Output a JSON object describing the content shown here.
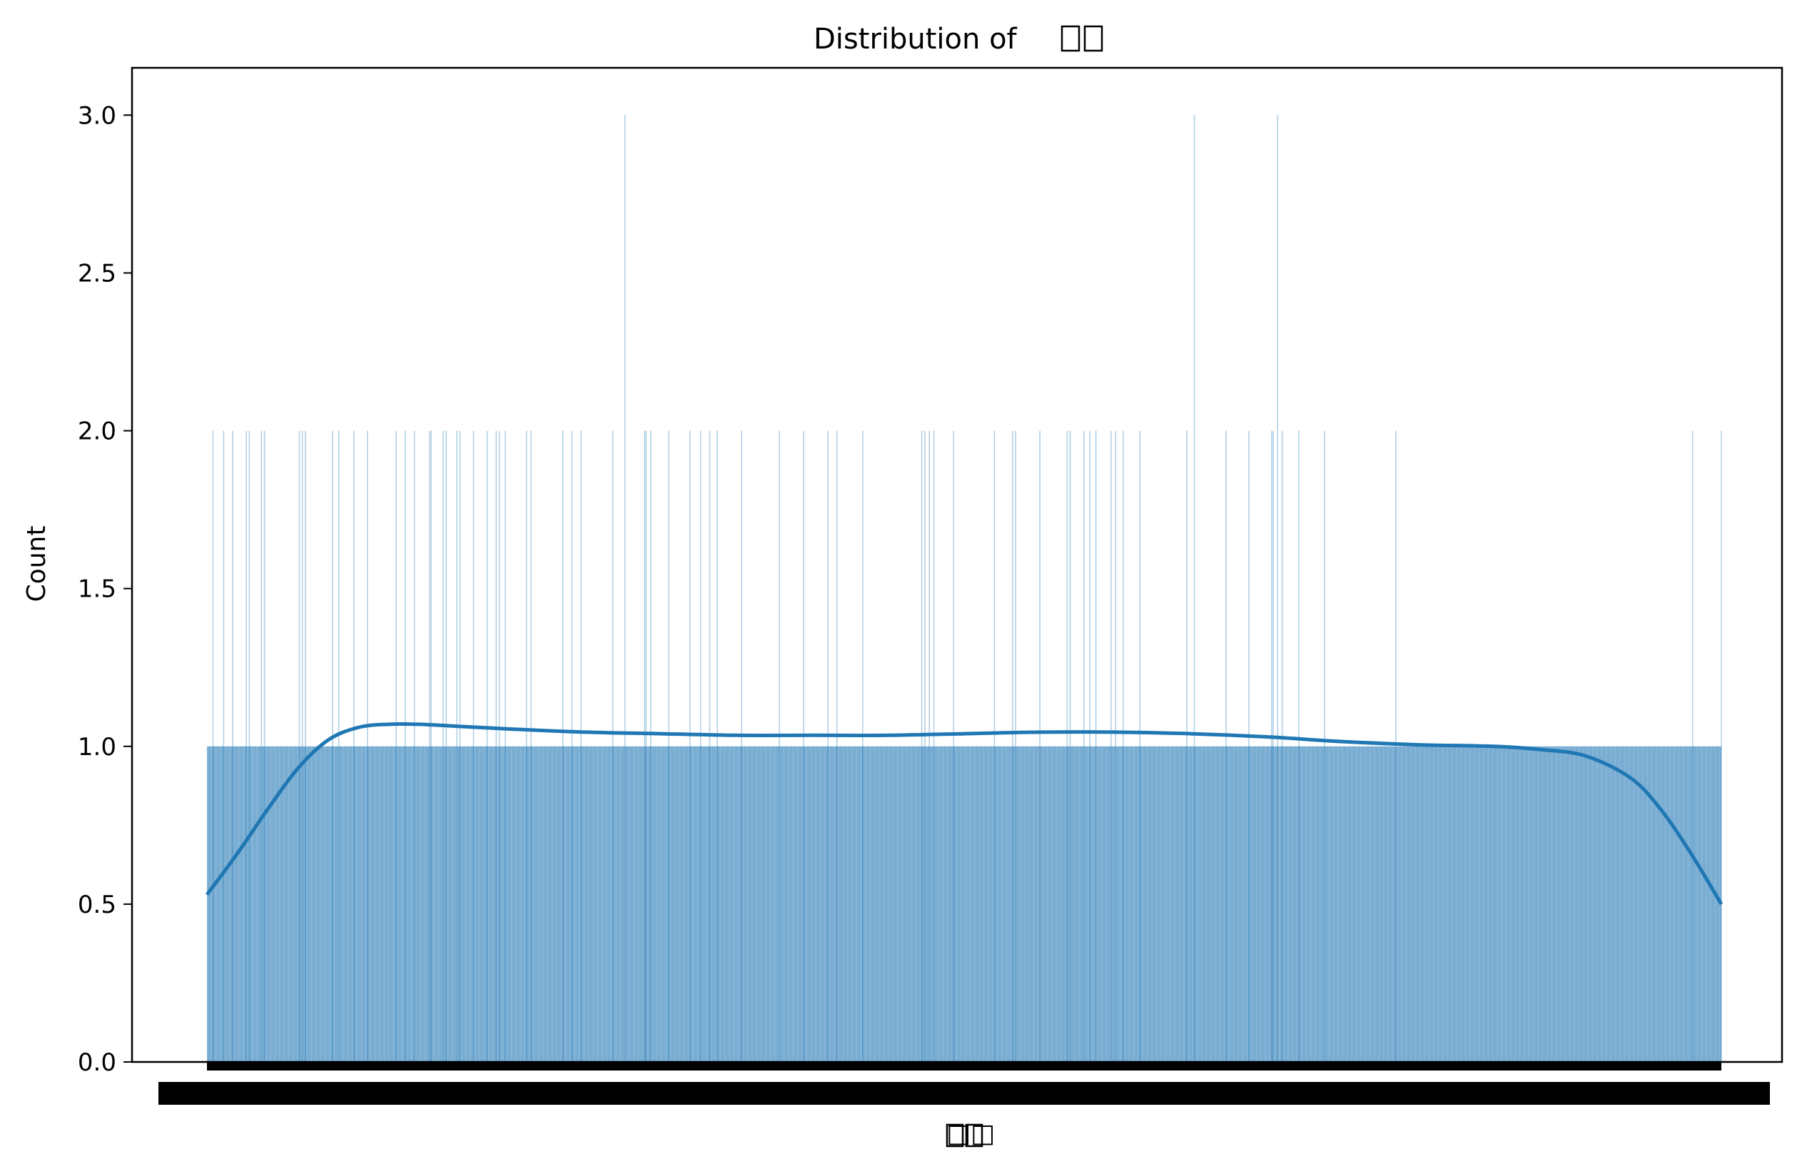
{
  "chart_data": {
    "type": "histogram",
    "title": "Distribution of □□",
    "xlabel": "□□",
    "ylabel": "Count",
    "ylim": [
      0,
      3.15
    ],
    "y_ticks": [
      "0.0",
      "0.5",
      "1.0",
      "1.5",
      "2.0",
      "2.5",
      "3.0"
    ],
    "y_tick_values": [
      0,
      0.5,
      1.0,
      1.5,
      2.0,
      2.5,
      3.0
    ],
    "x_tick_labels": "overlapping, illegible",
    "grid": false,
    "legend": "none",
    "bar_color": "#1f77b4",
    "base_count": 1,
    "n_bins_approx": 1000,
    "count_2_bin_positions": [
      0.004,
      0.011,
      0.017,
      0.026,
      0.028,
      0.036,
      0.038,
      0.061,
      0.063,
      0.065,
      0.083,
      0.087,
      0.097,
      0.106,
      0.125,
      0.131,
      0.137,
      0.147,
      0.148,
      0.156,
      0.158,
      0.165,
      0.167,
      0.176,
      0.185,
      0.191,
      0.193,
      0.197,
      0.211,
      0.214,
      0.235,
      0.241,
      0.247,
      0.268,
      0.289,
      0.29,
      0.293,
      0.305,
      0.319,
      0.326,
      0.332,
      0.337,
      0.353,
      0.378,
      0.394,
      0.41,
      0.416,
      0.433,
      0.472,
      0.474,
      0.477,
      0.48,
      0.493,
      0.52,
      0.532,
      0.534,
      0.55,
      0.568,
      0.57,
      0.579,
      0.583,
      0.587,
      0.597,
      0.6,
      0.605,
      0.616,
      0.647,
      0.673,
      0.688,
      0.703,
      0.704,
      0.71,
      0.721,
      0.738,
      0.785,
      0.981,
      1.0
    ],
    "count_3_bin_positions": [
      0.276,
      0.652,
      0.707
    ],
    "kde": {
      "x_fraction": [
        0,
        0.02,
        0.04,
        0.06,
        0.08,
        0.1,
        0.12,
        0.14,
        0.16,
        0.2,
        0.25,
        0.3,
        0.35,
        0.4,
        0.45,
        0.5,
        0.55,
        0.6,
        0.65,
        0.7,
        0.75,
        0.8,
        0.85,
        0.88,
        0.91,
        0.94,
        0.96,
        0.98,
        1.0
      ],
      "density_scaled": [
        0.53,
        0.66,
        0.8,
        0.93,
        1.02,
        1.06,
        1.07,
        1.07,
        1.065,
        1.055,
        1.045,
        1.04,
        1.035,
        1.035,
        1.035,
        1.04,
        1.045,
        1.045,
        1.04,
        1.03,
        1.015,
        1.005,
        1.0,
        0.99,
        0.97,
        0.9,
        0.8,
        0.66,
        0.5
      ],
      "color": "#1f77b4"
    }
  }
}
